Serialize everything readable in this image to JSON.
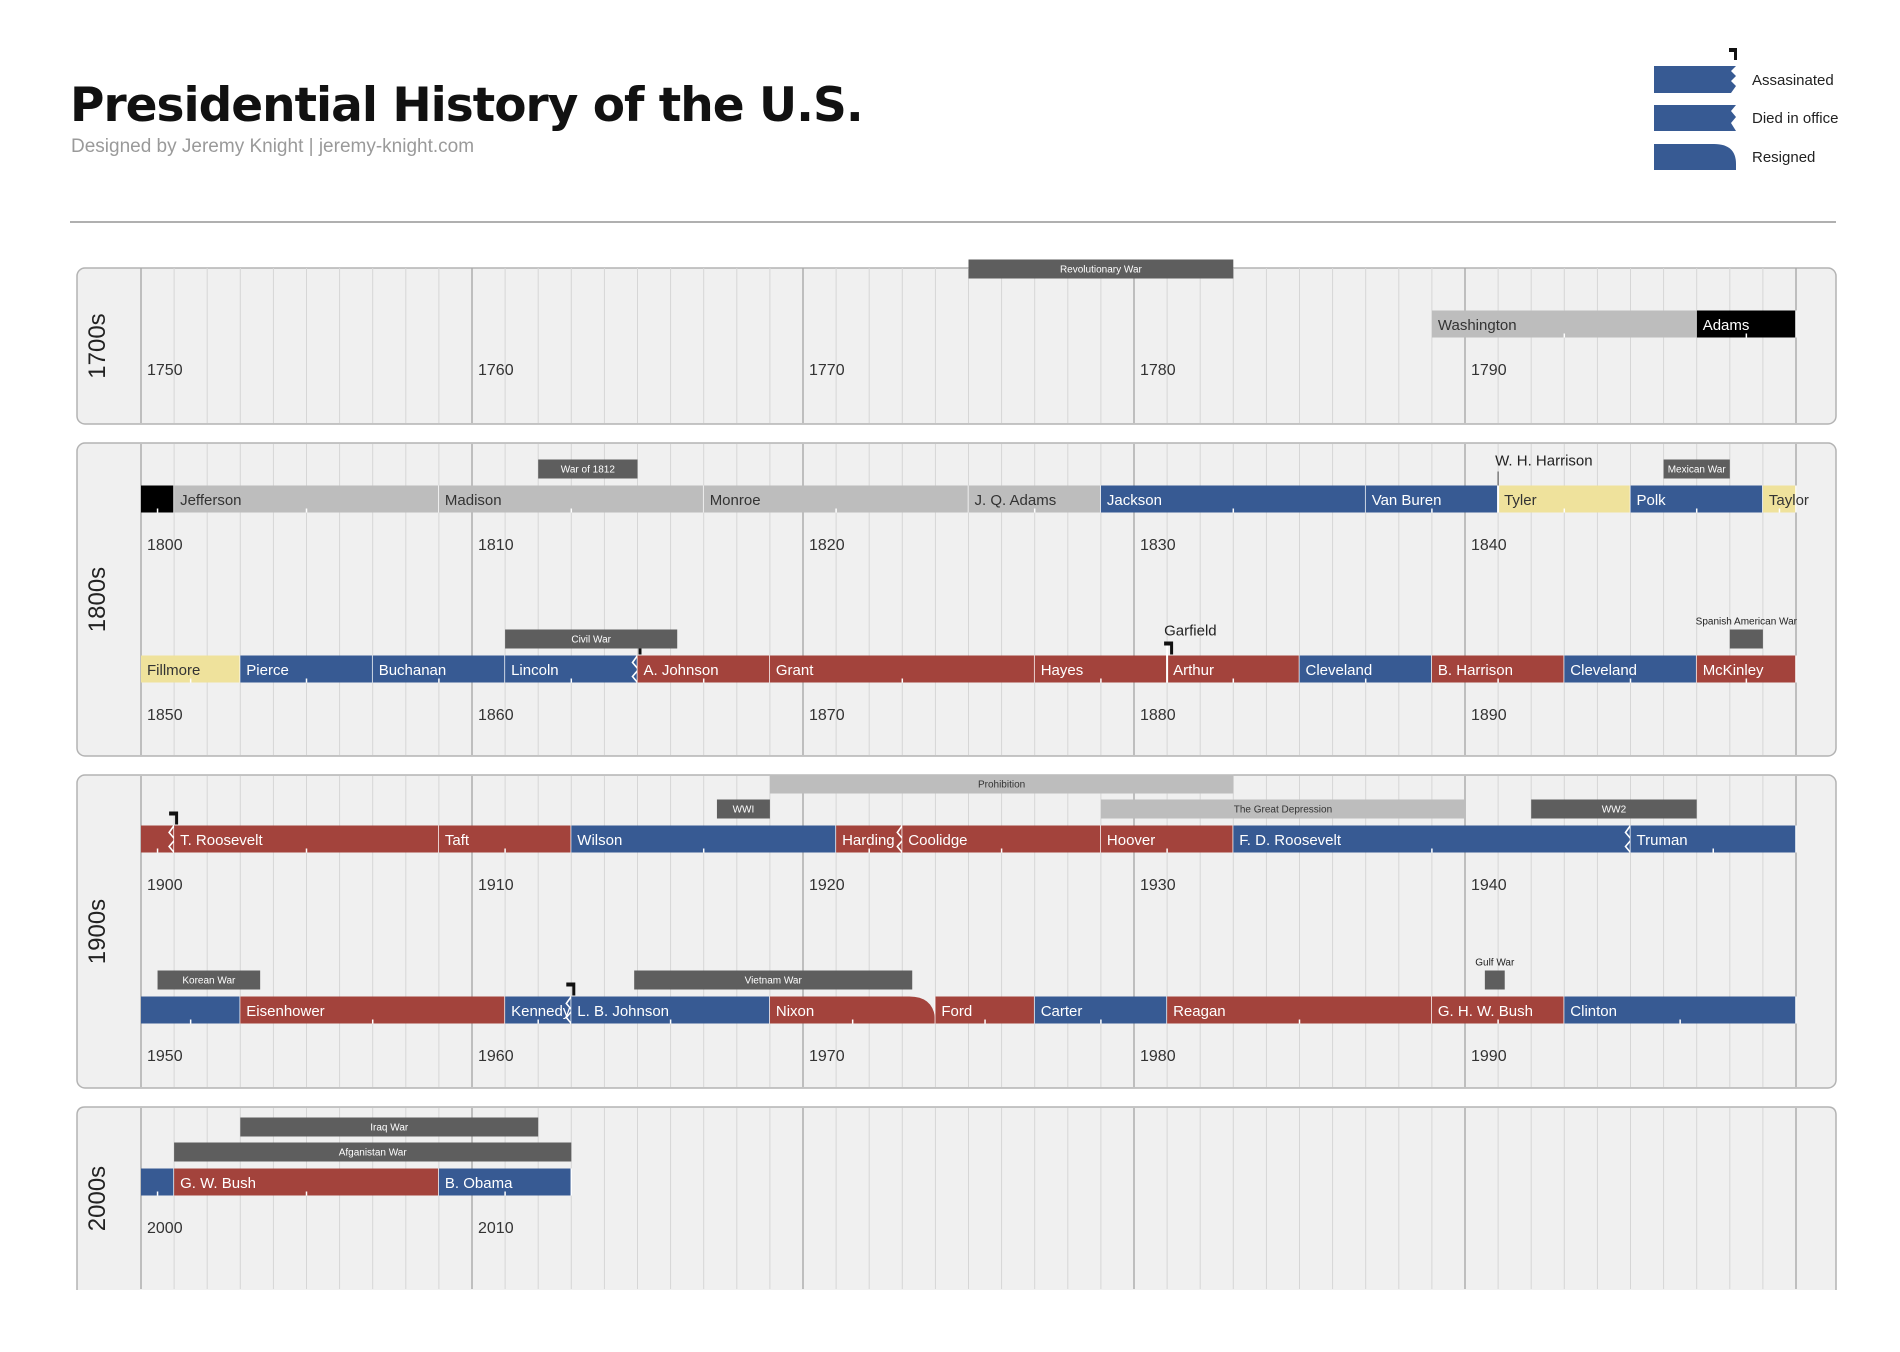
{
  "header": {
    "title": "Presidential History of the U.S.",
    "subtitle": "Designed by Jeremy Knight  |  jeremy-knight.com"
  },
  "legend": [
    {
      "label": "Assasinated",
      "shape": "assassinated-icon"
    },
    {
      "label": "Died in office",
      "shape": "died-in-office-icon"
    },
    {
      "label": "Resigned",
      "shape": "resigned-icon"
    }
  ],
  "colors": {
    "republican": "#a3433c",
    "democrat": "#375a93",
    "whig": "#bdbdbd",
    "federalist": "#000000",
    "independent": "#efe29c",
    "war": "#5e5e5e",
    "event": "#bdbdbd",
    "panel_bg": "#f0f0f0",
    "panel_border": "#b3b3b3"
  },
  "chart_data": {
    "type": "timeline",
    "panels": [
      {
        "label": "1700s",
        "rows": [
          {
            "axis_start": 1750,
            "tick_labels": [
              "1750",
              "1760",
              "1770",
              "1780",
              "1790"
            ],
            "presidents": [
              {
                "name": "Washington",
                "start": 1789,
                "end": 1797,
                "party": "whig"
              },
              {
                "name": "Adams",
                "start": 1797,
                "end": 1800,
                "party": "federalist"
              }
            ],
            "events": [
              {
                "name": "Revolutionary War",
                "start": 1775,
                "end": 1783,
                "kind": "war",
                "level": 2
              }
            ]
          }
        ]
      },
      {
        "label": "1800s",
        "rows": [
          {
            "axis_start": 1800,
            "tick_labels": [
              "1800",
              "1810",
              "1820",
              "1830",
              "1840"
            ],
            "presidents": [
              {
                "name": "",
                "start": 1800,
                "end": 1801,
                "party": "federalist"
              },
              {
                "name": "Jefferson",
                "start": 1801,
                "end": 1809,
                "party": "whig"
              },
              {
                "name": "Madison",
                "start": 1809,
                "end": 1817,
                "party": "whig"
              },
              {
                "name": "Monroe",
                "start": 1817,
                "end": 1825,
                "party": "whig"
              },
              {
                "name": "J. Q. Adams",
                "start": 1825,
                "end": 1829,
                "party": "whig"
              },
              {
                "name": "Jackson",
                "start": 1829,
                "end": 1837,
                "party": "democrat"
              },
              {
                "name": "Van Buren",
                "start": 1837,
                "end": 1841,
                "party": "democrat"
              },
              {
                "name": "Tyler",
                "start": 1841,
                "end": 1845,
                "party": "independent"
              },
              {
                "name": "Polk",
                "start": 1845,
                "end": 1849,
                "party": "democrat"
              },
              {
                "name": "Taylor",
                "start": 1849,
                "end": 1850,
                "party": "independent"
              }
            ],
            "events": [
              {
                "name": "War of 1812",
                "start": 1812,
                "end": 1815,
                "kind": "war",
                "level": 1
              },
              {
                "name": "Mexican War",
                "start": 1846,
                "end": 1848,
                "kind": "war",
                "level": 1
              }
            ],
            "markers": [
              {
                "name": "W. H. Harrison",
                "year": 1841,
                "type": "died",
                "label_above": true
              }
            ]
          },
          {
            "axis_start": 1850,
            "tick_labels": [
              "1850",
              "1860",
              "1870",
              "1880",
              "1890"
            ],
            "presidents": [
              {
                "name": "Fillmore",
                "start": 1850,
                "end": 1853,
                "party": "independent"
              },
              {
                "name": "Pierce",
                "start": 1853,
                "end": 1857,
                "party": "democrat"
              },
              {
                "name": "Buchanan",
                "start": 1857,
                "end": 1861,
                "party": "democrat"
              },
              {
                "name": "Lincoln",
                "start": 1861,
                "end": 1865,
                "party": "democrat",
                "end_style": "assassinated"
              },
              {
                "name": "A. Johnson",
                "start": 1865,
                "end": 1869,
                "party": "republican"
              },
              {
                "name": "Grant",
                "start": 1869,
                "end": 1877,
                "party": "republican"
              },
              {
                "name": "Hayes",
                "start": 1877,
                "end": 1881,
                "party": "republican"
              },
              {
                "name": "Arthur",
                "start": 1881,
                "end": 1885,
                "party": "republican"
              },
              {
                "name": "Cleveland",
                "start": 1885,
                "end": 1889,
                "party": "democrat"
              },
              {
                "name": "B. Harrison",
                "start": 1889,
                "end": 1893,
                "party": "republican"
              },
              {
                "name": "Cleveland",
                "start": 1893,
                "end": 1897,
                "party": "democrat"
              },
              {
                "name": "McKinley",
                "start": 1897,
                "end": 1900,
                "party": "republican"
              }
            ],
            "events": [
              {
                "name": "Civil War",
                "start": 1861,
                "end": 1866.2,
                "kind": "war",
                "level": 1
              },
              {
                "name": "Spanish American War",
                "start": 1898,
                "end": 1899,
                "kind": "war",
                "level": 1
              }
            ],
            "markers": [
              {
                "name": "Garfield",
                "year": 1881,
                "type": "assassinated",
                "label_above": true
              }
            ]
          }
        ]
      },
      {
        "label": "1900s",
        "rows": [
          {
            "axis_start": 1900,
            "tick_labels": [
              "1900",
              "1910",
              "1920",
              "1930",
              "1940"
            ],
            "presidents": [
              {
                "name": "",
                "start": 1900,
                "end": 1901,
                "party": "republican",
                "end_style": "assassinated"
              },
              {
                "name": "T. Roosevelt",
                "start": 1901,
                "end": 1909,
                "party": "republican"
              },
              {
                "name": "Taft",
                "start": 1909,
                "end": 1913,
                "party": "republican"
              },
              {
                "name": "Wilson",
                "start": 1913,
                "end": 1921,
                "party": "democrat"
              },
              {
                "name": "Harding",
                "start": 1921,
                "end": 1923,
                "party": "republican",
                "end_style": "died"
              },
              {
                "name": "Coolidge",
                "start": 1923,
                "end": 1929,
                "party": "republican"
              },
              {
                "name": "Hoover",
                "start": 1929,
                "end": 1933,
                "party": "republican"
              },
              {
                "name": "F. D. Roosevelt",
                "start": 1933,
                "end": 1945,
                "party": "democrat",
                "end_style": "died"
              },
              {
                "name": "Truman",
                "start": 1945,
                "end": 1950,
                "party": "democrat"
              }
            ],
            "events": [
              {
                "name": "Prohibition",
                "start": 1919,
                "end": 1933,
                "kind": "event",
                "level": 2
              },
              {
                "name": "WWI",
                "start": 1917.4,
                "end": 1919,
                "kind": "war",
                "level": 1
              },
              {
                "name": "The Great Depression",
                "start": 1929,
                "end": 1940,
                "kind": "event",
                "level": 1
              },
              {
                "name": "WW2",
                "start": 1942,
                "end": 1947,
                "kind": "war",
                "level": 1
              }
            ]
          },
          {
            "axis_start": 1950,
            "tick_labels": [
              "1950",
              "1960",
              "1970",
              "1980",
              "1990"
            ],
            "presidents": [
              {
                "name": "",
                "start": 1950,
                "end": 1953,
                "party": "democrat"
              },
              {
                "name": "Eisenhower",
                "start": 1953,
                "end": 1961,
                "party": "republican"
              },
              {
                "name": "Kennedy",
                "start": 1961,
                "end": 1963,
                "party": "democrat",
                "end_style": "assassinated"
              },
              {
                "name": "L. B. Johnson",
                "start": 1963,
                "end": 1969,
                "party": "democrat"
              },
              {
                "name": "Nixon",
                "start": 1969,
                "end": 1974,
                "party": "republican",
                "end_style": "resigned"
              },
              {
                "name": "Ford",
                "start": 1974,
                "end": 1977,
                "party": "republican"
              },
              {
                "name": "Carter",
                "start": 1977,
                "end": 1981,
                "party": "democrat"
              },
              {
                "name": "Reagan",
                "start": 1981,
                "end": 1989,
                "party": "republican"
              },
              {
                "name": "G. H. W. Bush",
                "start": 1989,
                "end": 1993,
                "party": "republican"
              },
              {
                "name": "Clinton",
                "start": 1993,
                "end": 2000,
                "party": "democrat"
              }
            ],
            "events": [
              {
                "name": "Korean War",
                "start": 1950.5,
                "end": 1953.6,
                "kind": "war",
                "level": 1
              },
              {
                "name": "Vietnam War",
                "start": 1964.9,
                "end": 1973.3,
                "kind": "war",
                "level": 1
              },
              {
                "name": "Gulf War",
                "start": 1990.6,
                "end": 1991.2,
                "kind": "war",
                "level": 1
              }
            ]
          }
        ]
      },
      {
        "label": "2000s",
        "rows": [
          {
            "axis_start": 2000,
            "tick_labels": [
              "2000",
              "2010"
            ],
            "presidents": [
              {
                "name": "",
                "start": 2000,
                "end": 2001,
                "party": "democrat"
              },
              {
                "name": "G. W. Bush",
                "start": 2001,
                "end": 2009,
                "party": "republican"
              },
              {
                "name": "B. Obama",
                "start": 2009,
                "end": 2013,
                "party": "democrat"
              }
            ],
            "events": [
              {
                "name": "Iraq War",
                "start": 2003,
                "end": 2012,
                "kind": "war",
                "level": 2
              },
              {
                "name": "Afganistan War",
                "start": 2001,
                "end": 2013,
                "kind": "war",
                "level": 1
              }
            ]
          }
        ]
      }
    ]
  }
}
